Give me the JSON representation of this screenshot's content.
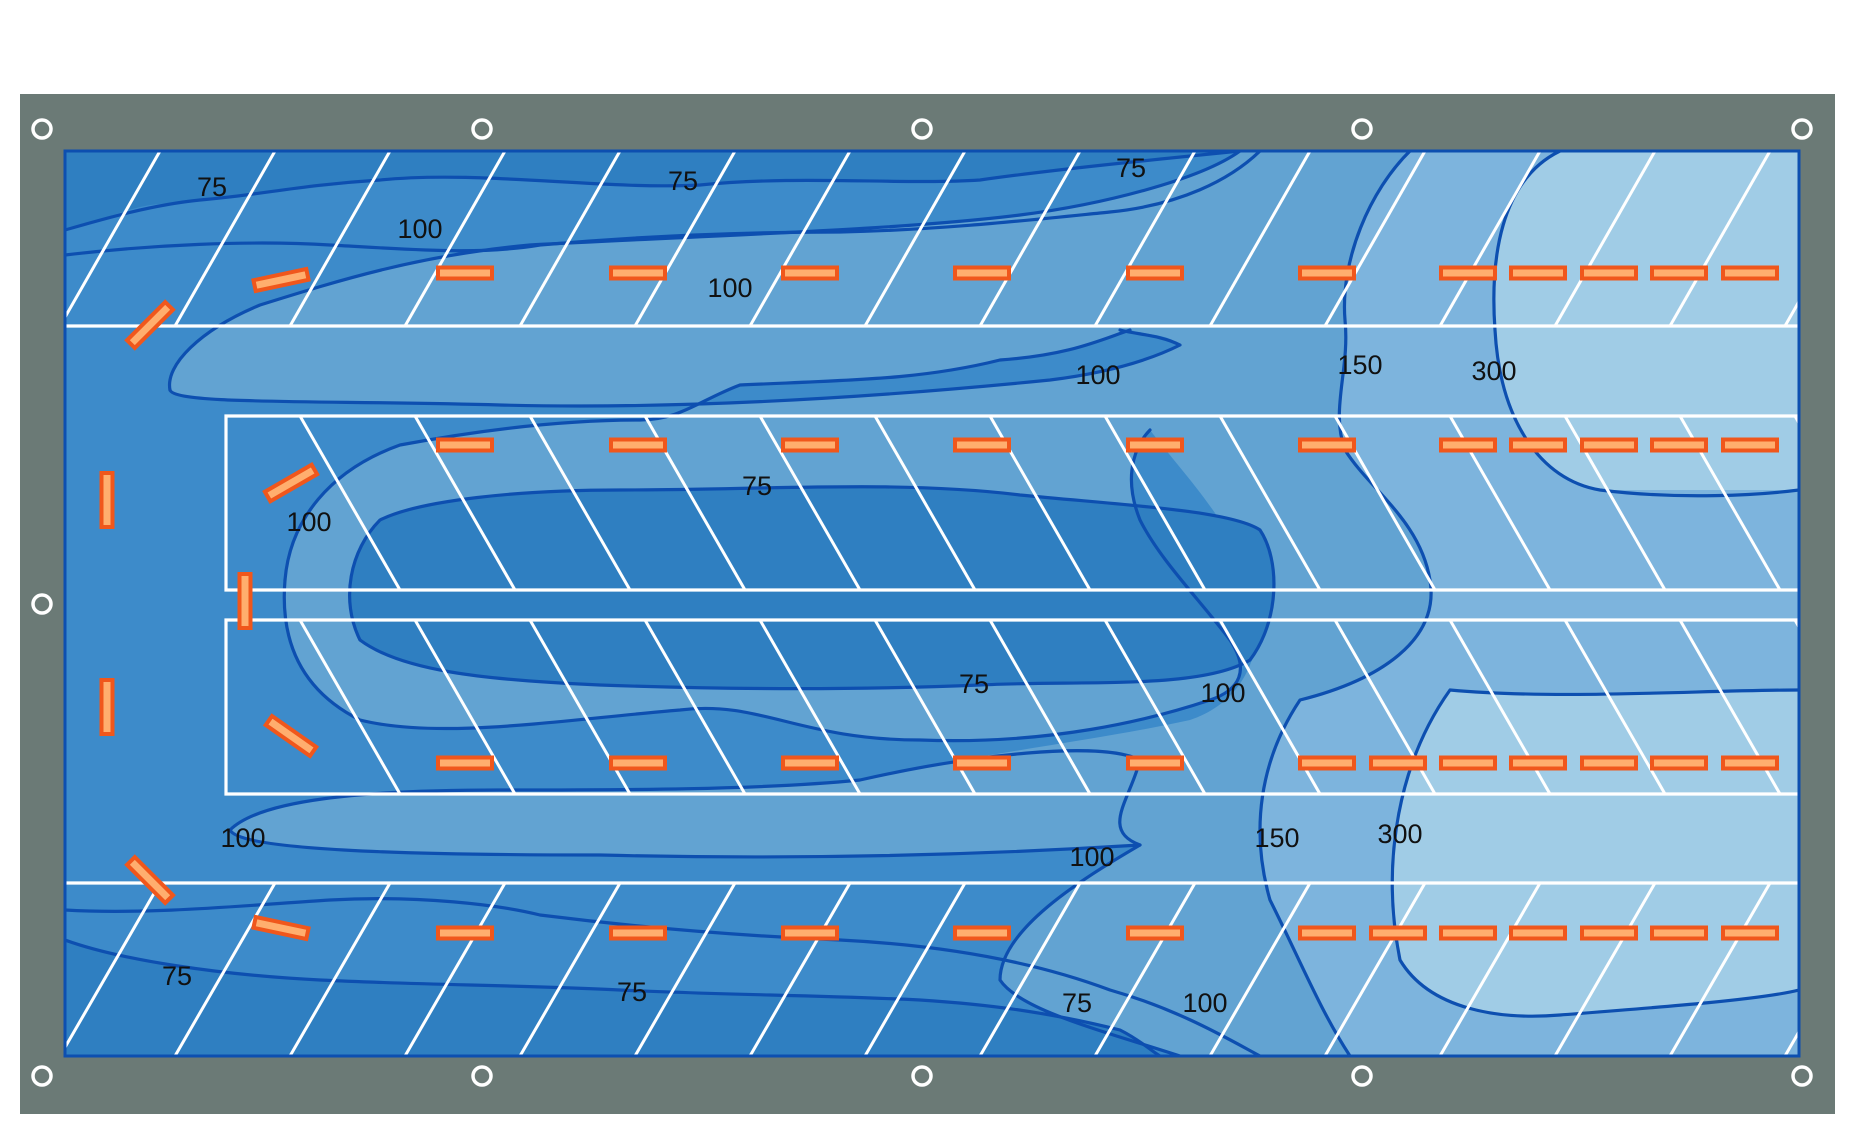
{
  "diagram": {
    "type": "illuminance contour plan",
    "colors": {
      "frame": "#6b7a76",
      "zone_75": "#2f7fc1",
      "zone_100": "#3d8bca",
      "zone_150": "#62a3d2",
      "zone_300": "#7db4dd",
      "zone_max": "#a0cce6",
      "isoline": "#0d4fb0",
      "lane_marking": "#ffffff",
      "luminaire_fill": "#ffae6e",
      "luminaire_stroke": "#f0571c"
    },
    "isoline_labels": [
      "75",
      "75",
      "75",
      "100",
      "100",
      "100",
      "150",
      "300",
      "75",
      "100",
      "75",
      "100",
      "100",
      "100",
      "150",
      "300",
      "75",
      "75",
      "75",
      "100"
    ]
  }
}
